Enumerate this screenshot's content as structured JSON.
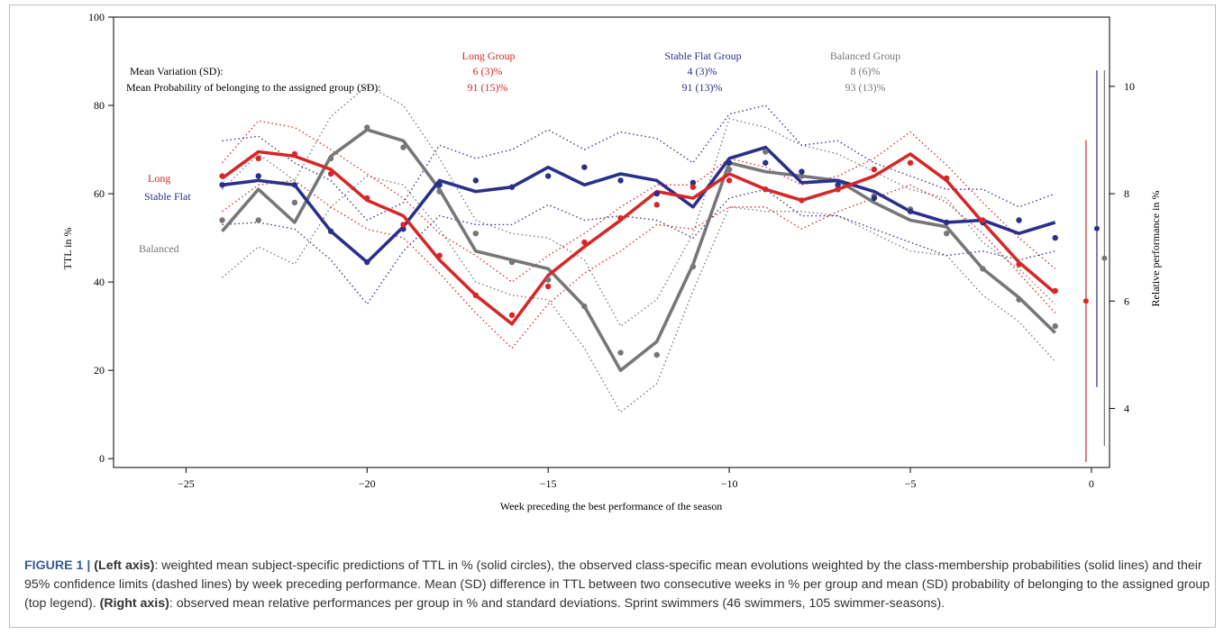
{
  "chart_data": {
    "type": "line",
    "xlabel": "Week preceding the best performance of the season",
    "ylabel": "TTL in %",
    "y2label": "Relative performance in %",
    "xlim": [
      -27,
      0.5
    ],
    "ylim": [
      -2,
      100
    ],
    "y2lim": [
      2.9,
      11.29
    ],
    "x_ticks": [
      -25,
      -20,
      -15,
      -10,
      -5,
      0
    ],
    "x_tick_labels": [
      "−25",
      "−20",
      "−15",
      "−10",
      "−5",
      "0"
    ],
    "y_ticks": [
      0,
      20,
      40,
      60,
      80,
      100
    ],
    "y2_ticks": [
      4,
      6,
      8,
      10
    ],
    "grid": false,
    "colors": {
      "long": "#d62728",
      "stable": "#2a2f8a",
      "balanced": "#777777"
    },
    "legend": {
      "headers": [
        "Long Group",
        "Stable Flat Group",
        "Balanced Group"
      ],
      "row1_label": "Mean Variation (SD):",
      "row1_values": [
        "6 (3)%",
        "4 (3)%",
        "8 (6)%"
      ],
      "row2_label": "Mean Probability of belonging to the assigned group (SD):",
      "row2_values": [
        "91 (15)%",
        "91 (13)%",
        "93 (13)%"
      ]
    },
    "series_labels": {
      "long": "Long",
      "stable": "Stable Flat",
      "balanced": "Balanced"
    },
    "weeks": [
      -24,
      -23,
      -22,
      -21,
      -20,
      -19,
      -18,
      -17,
      -16,
      -15,
      -14,
      -13,
      -12,
      -11,
      -10,
      -9,
      -8,
      -7,
      -6,
      -5,
      -4,
      -3,
      -2,
      -1
    ],
    "series": [
      {
        "key": "long",
        "line": [
          63.5,
          69.5,
          68.5,
          65.5,
          58.5,
          55,
          45,
          37,
          30.5,
          41.5,
          48,
          54,
          60.5,
          59,
          64.5,
          61,
          58.5,
          61,
          64,
          69,
          63,
          53.5,
          44.5,
          37.5
        ],
        "points": [
          64,
          68,
          69,
          64.5,
          59,
          53,
          46,
          37,
          32.5,
          39,
          49,
          54.5,
          57.5,
          61.5,
          63,
          61,
          58.5,
          61,
          65.5,
          67,
          63.5,
          54,
          44,
          38
        ],
        "upper": [
          67,
          76.5,
          75,
          70,
          64.5,
          59,
          51,
          46,
          40,
          46,
          51,
          57,
          62,
          62,
          68,
          66,
          62,
          64,
          68,
          74,
          66.5,
          58,
          50,
          43
        ],
        "lower": [
          56,
          62,
          63,
          57,
          52,
          50,
          42,
          33,
          25,
          35,
          42,
          47,
          53,
          52,
          57,
          57,
          52,
          56,
          59,
          62,
          58,
          51,
          42,
          33
        ]
      },
      {
        "key": "stable",
        "line": [
          62,
          63,
          62,
          51.5,
          44.5,
          52.5,
          63,
          60.5,
          61.5,
          66,
          62,
          64.5,
          63,
          57,
          68,
          70.5,
          62.5,
          63,
          60.5,
          56,
          53.5,
          54,
          51,
          53.5
        ],
        "points": [
          62,
          64,
          62,
          51.5,
          44.5,
          52,
          62,
          63,
          61.5,
          64,
          66,
          63,
          60,
          62.5,
          67,
          67,
          65,
          62,
          59,
          56,
          53.5,
          53.5,
          54,
          50
        ],
        "upper": [
          72,
          73,
          67,
          63,
          54,
          58,
          71,
          68,
          70,
          74.5,
          70,
          74,
          72.5,
          67,
          78,
          80,
          71,
          72,
          67,
          64,
          61,
          61,
          57,
          60
        ],
        "lower": [
          53,
          53.5,
          52,
          45,
          35,
          47,
          55,
          53,
          53,
          57.5,
          54,
          55,
          54,
          50,
          59,
          61,
          55,
          55,
          52,
          49,
          46,
          47,
          45,
          47
        ]
      },
      {
        "key": "balanced",
        "line": [
          51.5,
          61,
          53.5,
          68.5,
          74.5,
          72,
          61,
          47,
          45,
          43,
          34.5,
          20,
          26.5,
          44,
          67,
          65,
          64,
          63,
          58,
          54,
          52.5,
          43,
          36.5,
          28.5
        ],
        "points": [
          54,
          54,
          58,
          68,
          75,
          70.5,
          60.5,
          51,
          44.5,
          40.5,
          34.5,
          24,
          23.5,
          43.5,
          65.5,
          69.5,
          64,
          61,
          59.5,
          56.5,
          51,
          43,
          36,
          30
        ],
        "upper": [
          61,
          69,
          63,
          77.5,
          84.5,
          80,
          68,
          54,
          51,
          50,
          45,
          30,
          36,
          51,
          77,
          75,
          71,
          69,
          65,
          61,
          59,
          49,
          43,
          35
        ],
        "lower": [
          41,
          48,
          44,
          57,
          64,
          62,
          52,
          40,
          37,
          36,
          25,
          10.5,
          17,
          38,
          57,
          56,
          56,
          55,
          51,
          47,
          46,
          37,
          31,
          22
        ]
      }
    ],
    "right_axis_values": [
      {
        "key": "long",
        "mean": 6.0,
        "sd": 3.0
      },
      {
        "key": "stable",
        "mean": 7.35,
        "sd": 2.95
      },
      {
        "key": "balanced",
        "mean": 6.8,
        "sd": 3.5
      }
    ]
  },
  "caption": {
    "label": "FIGURE 1 | ",
    "left_axis_head": "(Left axis)",
    "left_axis_text": ": weighted mean subject-specific predictions of TTL in % (solid circles), the observed class-specific mean evolutions weighted by the class-membership probabilities (solid lines) and their 95% confidence limits (dashed lines) by week preceding performance. Mean (SD) difference in TTL between two consecutive weeks in % per group and mean (SD) probability of belonging to the assigned group (top legend). ",
    "right_axis_head": "(Right axis)",
    "right_axis_text": ": observed mean relative performances per group in % and standard deviations. Sprint swimmers (46 swimmers, 105 swimmer-seasons)."
  }
}
